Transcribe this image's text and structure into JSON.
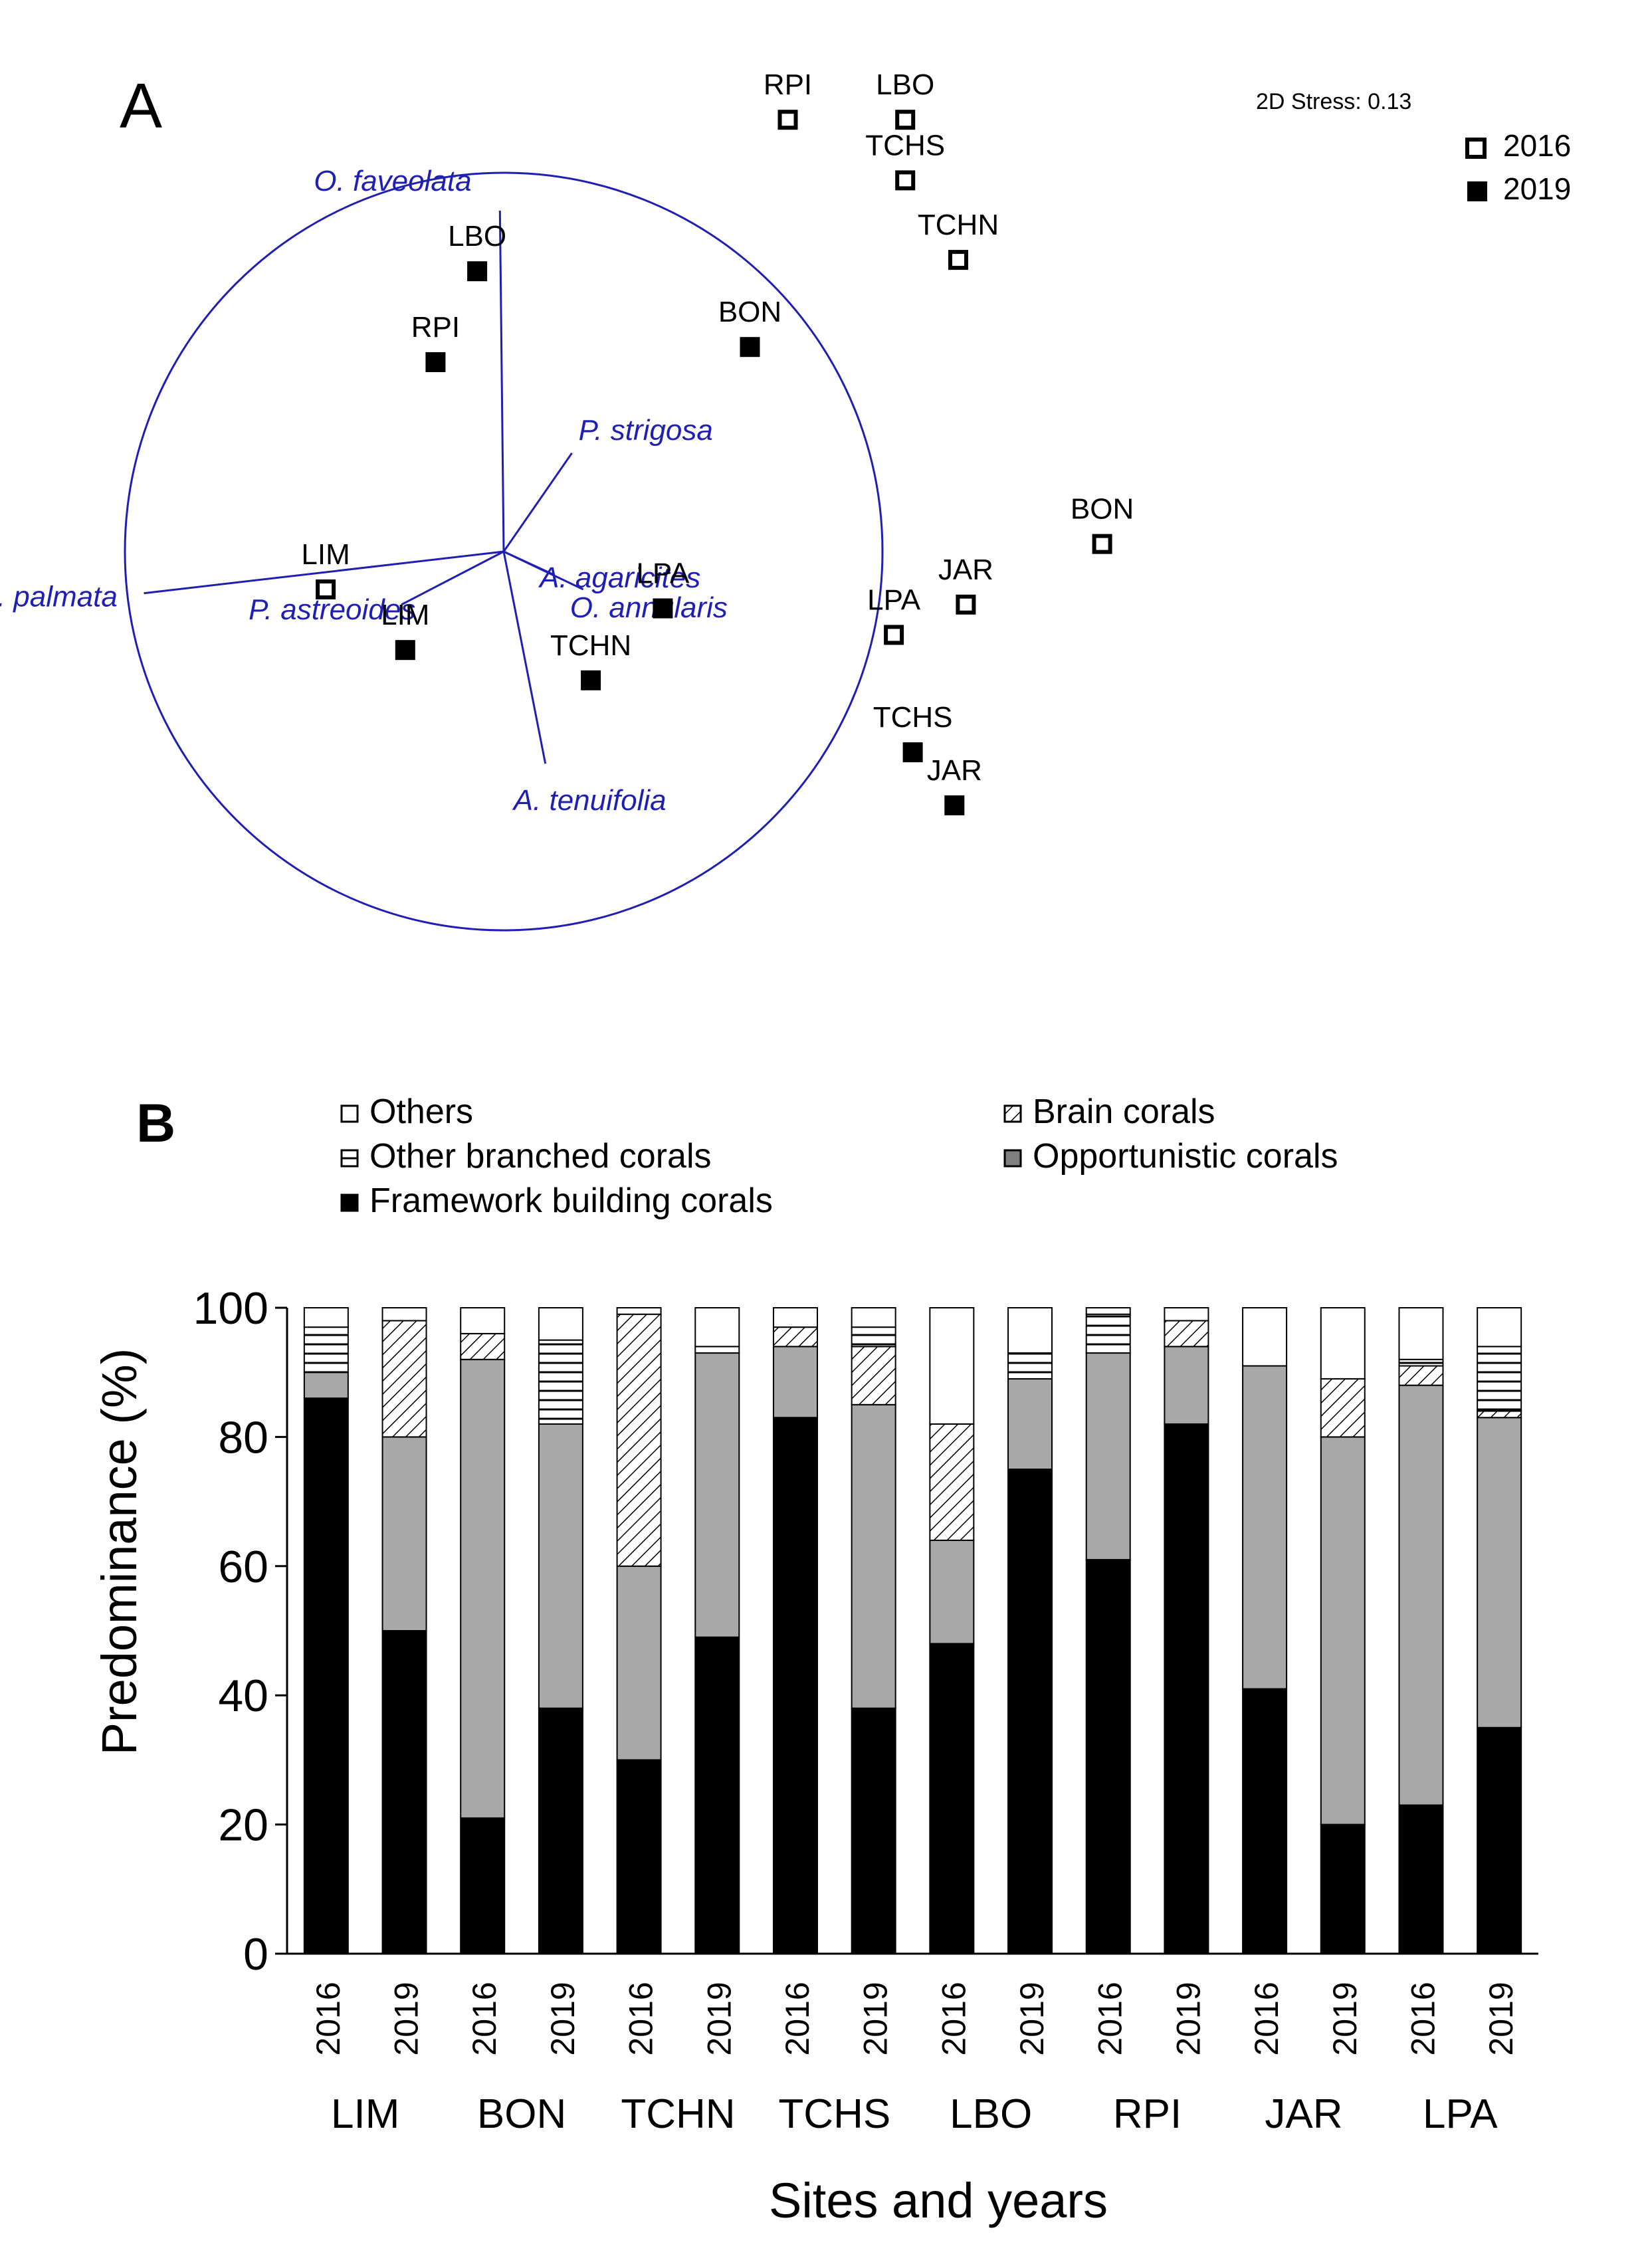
{
  "chart_data": [
    {
      "type": "scatter",
      "panel_label": "A",
      "stress_text": "2D Stress: 0.13",
      "legend": [
        {
          "label": "2016",
          "marker": "open-square"
        },
        {
          "label": "2019",
          "marker": "filled-square"
        }
      ],
      "xlim": [
        -1.5,
        1.5
      ],
      "ylim": [
        -1.5,
        1.5
      ],
      "circle": {
        "cx": 0,
        "cy": 0,
        "r": 1
      },
      "points": [
        {
          "label": "RPI",
          "year": "2016",
          "x": 0.75,
          "y": 1.14
        },
        {
          "label": "LBO",
          "year": "2016",
          "x": 1.06,
          "y": 1.14
        },
        {
          "label": "TCHS",
          "year": "2016",
          "x": 1.06,
          "y": 0.98
        },
        {
          "label": "TCHN",
          "year": "2016",
          "x": 1.2,
          "y": 0.77
        },
        {
          "label": "BON",
          "year": "2016",
          "x": 1.58,
          "y": 0.02
        },
        {
          "label": "JAR",
          "year": "2016",
          "x": 1.22,
          "y": -0.14
        },
        {
          "label": "LPA",
          "year": "2016",
          "x": 1.03,
          "y": -0.22
        },
        {
          "label": "LIM",
          "year": "2016",
          "x": -0.47,
          "y": -0.1
        },
        {
          "label": "LBO",
          "year": "2019",
          "x": -0.07,
          "y": 0.74
        },
        {
          "label": "RPI",
          "year": "2019",
          "x": -0.18,
          "y": 0.5
        },
        {
          "label": "BON",
          "year": "2019",
          "x": 0.65,
          "y": 0.54
        },
        {
          "label": "LPA",
          "year": "2019",
          "x": 0.42,
          "y": -0.15
        },
        {
          "label": "LIM",
          "year": "2019",
          "x": -0.26,
          "y": -0.26
        },
        {
          "label": "TCHN",
          "year": "2019",
          "x": 0.23,
          "y": -0.34
        },
        {
          "label": "TCHS",
          "year": "2019",
          "x": 1.08,
          "y": -0.53
        },
        {
          "label": "JAR",
          "year": "2019",
          "x": 1.19,
          "y": -0.67
        }
      ],
      "vectors": [
        {
          "label": "O. faveolata",
          "x": -0.01,
          "y": 0.9
        },
        {
          "label": "P. strigosa",
          "x": 0.18,
          "y": 0.26
        },
        {
          "label": "A. palmata",
          "x": -0.95,
          "y": -0.11
        },
        {
          "label": "P. astreoides",
          "x": -0.27,
          "y": -0.14
        },
        {
          "label": "A. agaricites",
          "x": 0.13,
          "y": -0.06
        },
        {
          "label": "O. annularis",
          "x": 0.21,
          "y": -0.1
        },
        {
          "label": "A. tenuifolia",
          "x": 0.11,
          "y": -0.56
        }
      ]
    },
    {
      "type": "bar",
      "stacked": true,
      "panel_label": "B",
      "ylabel": "Predominance (%)",
      "xlabel": "Sites and years",
      "ylim": [
        0,
        100
      ],
      "yticks": [
        "0",
        "20",
        "40",
        "60",
        "80",
        "100"
      ],
      "years": [
        "2016",
        "2019"
      ],
      "sites": [
        "LIM",
        "BON",
        "TCHN",
        "TCHS",
        "LBO",
        "RPI",
        "JAR",
        "LPA"
      ],
      "categories": [
        "2016",
        "2019",
        "2016",
        "2019",
        "2016",
        "2019",
        "2016",
        "2019",
        "2016",
        "2019",
        "2016",
        "2019",
        "2016",
        "2019",
        "2016",
        "2019"
      ],
      "legend_order": [
        "Others",
        "Brain corals",
        "Other branched corals",
        "Opportunistic corals",
        "Framework building corals"
      ],
      "series": [
        {
          "name": "Framework building corals",
          "fill": "#000000",
          "values": [
            86,
            50,
            21,
            38,
            30,
            49,
            83,
            38,
            48,
            75,
            61,
            82,
            41,
            20,
            23,
            35
          ]
        },
        {
          "name": "Opportunistic corals",
          "fill": "#a8a8a8",
          "values": [
            4,
            30,
            71,
            44,
            30,
            44,
            11,
            47,
            16,
            14,
            32,
            12,
            50,
            60,
            65,
            48
          ]
        },
        {
          "name": "Brain corals",
          "fill": "hatch",
          "values": [
            0,
            18,
            4,
            0,
            39,
            0,
            3,
            9,
            18,
            0,
            0,
            4,
            0,
            9,
            3,
            1
          ]
        },
        {
          "name": "Other branched corals",
          "fill": "stripes",
          "values": [
            7,
            0,
            0,
            13,
            0,
            1,
            0,
            3,
            0,
            4,
            6,
            0,
            0,
            0,
            1,
            10
          ]
        },
        {
          "name": "Others",
          "fill": "#ffffff",
          "values": [
            3,
            2,
            4,
            5,
            1,
            6,
            3,
            3,
            18,
            7,
            1,
            2,
            9,
            11,
            8,
            6
          ]
        }
      ]
    }
  ]
}
